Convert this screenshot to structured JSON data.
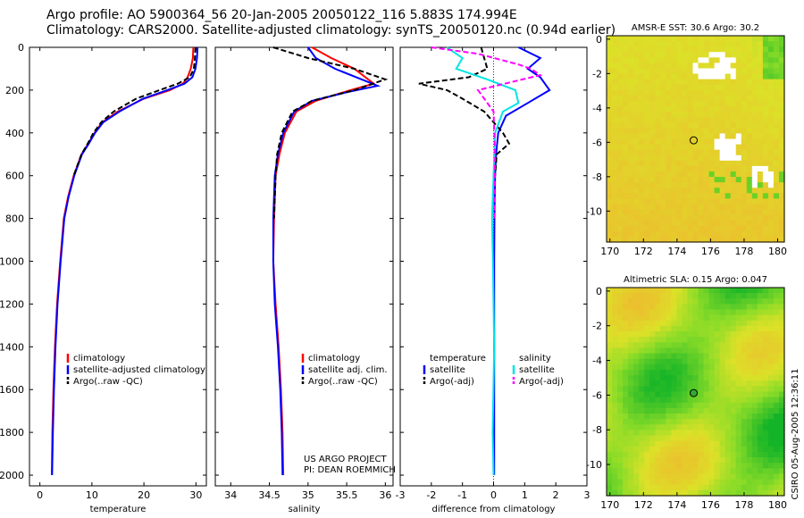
{
  "header": {
    "line1": "Argo profile: AO 5900364_56 20-Jan-2005 20050122_116 5.883S 174.994E",
    "line2": "Climatology: CARS2000. Satellite-adjusted climatology: synTS_20050120.nc (0.94d earlier)"
  },
  "colors": {
    "climatology": "#ff0000",
    "satellite": "#0000ff",
    "argo": "#000000",
    "salinity_sat": "#00e5e5",
    "salinity_argo": "#ff00ff"
  },
  "chart_data": [
    {
      "type": "line",
      "id": "temperature",
      "xlabel": "temperature",
      "ylabel": "",
      "xlim": [
        -2,
        32
      ],
      "ylim": [
        2050,
        0
      ],
      "xticks": [
        0,
        10,
        20,
        30
      ],
      "yticks": [
        0,
        200,
        400,
        600,
        800,
        1000,
        1200,
        1400,
        1600,
        1800,
        2000
      ],
      "legend": [
        "climatology",
        "satellite-adjusted climatology",
        "Argo(..raw -QC)"
      ],
      "series": [
        {
          "name": "climatology",
          "color": "#ff0000",
          "dash": false,
          "x": [
            29.5,
            29.4,
            29.0,
            28.4,
            27.5,
            25.0,
            20.0,
            15.0,
            12.0,
            10.5,
            9.3,
            8.0,
            6.5,
            5.4,
            4.6,
            3.9,
            3.3,
            2.9,
            2.6,
            2.4,
            2.3
          ],
          "y": [
            0,
            50,
            100,
            140,
            170,
            200,
            240,
            300,
            350,
            400,
            450,
            500,
            600,
            700,
            800,
            1000,
            1200,
            1400,
            1600,
            1800,
            2000
          ]
        },
        {
          "name": "satellite-adjusted climatology",
          "color": "#0000ff",
          "dash": false,
          "x": [
            30.3,
            30.2,
            29.9,
            29.3,
            27.8,
            24.5,
            19.8,
            15.3,
            12.2,
            10.6,
            9.4,
            8.1,
            6.6,
            5.5,
            4.7,
            4.0,
            3.4,
            3.0,
            2.7,
            2.5,
            2.35
          ],
          "y": [
            0,
            50,
            100,
            140,
            170,
            200,
            240,
            300,
            350,
            400,
            450,
            500,
            600,
            700,
            800,
            1000,
            1200,
            1400,
            1600,
            1800,
            2000
          ]
        },
        {
          "name": "Argo(..raw -QC)",
          "color": "#000000",
          "dash": true,
          "x": [
            29.9,
            29.8,
            29.6,
            28.8,
            26.5,
            23.0,
            18.5,
            14.2,
            11.8,
            10.3,
            9.2,
            8.0,
            6.5
          ],
          "y": [
            0,
            50,
            100,
            140,
            170,
            200,
            240,
            300,
            350,
            400,
            450,
            500,
            600
          ]
        }
      ]
    },
    {
      "type": "line",
      "id": "salinity",
      "xlabel": "salinity",
      "xlim": [
        33.8,
        36.1
      ],
      "ylim": [
        2050,
        0
      ],
      "xticks": [
        34,
        34.5,
        35,
        35.5,
        36
      ],
      "legend": [
        "climatology",
        "satellite adj. clim.",
        "Argo(..raw -QC)"
      ],
      "annotation": [
        "US ARGO PROJECT",
        "PI: DEAN ROEMMICH"
      ],
      "series": [
        {
          "name": "climatology",
          "color": "#ff0000",
          "dash": false,
          "x": [
            35.05,
            35.3,
            35.6,
            35.85,
            35.55,
            35.1,
            34.85,
            34.7,
            34.63,
            34.58,
            34.56,
            34.55,
            34.58,
            34.62,
            34.65,
            34.67,
            34.68
          ],
          "y": [
            0,
            50,
            100,
            170,
            200,
            250,
            300,
            400,
            500,
            600,
            800,
            1000,
            1200,
            1400,
            1600,
            1800,
            2000
          ]
        },
        {
          "name": "satellite adj. clim.",
          "color": "#0000ff",
          "dash": false,
          "x": [
            35.0,
            35.1,
            35.35,
            35.9,
            35.5,
            35.05,
            34.82,
            34.68,
            34.61,
            34.57,
            34.55,
            34.55,
            34.57,
            34.61,
            34.64,
            34.66,
            34.67
          ],
          "y": [
            0,
            50,
            100,
            180,
            210,
            250,
            300,
            400,
            500,
            600,
            800,
            1000,
            1200,
            1400,
            1600,
            1800,
            2000
          ]
        },
        {
          "name": "Argo(..raw -QC)",
          "color": "#000000",
          "dash": true,
          "x": [
            34.55,
            35.0,
            35.6,
            36.0,
            35.6,
            35.05,
            34.8,
            34.66,
            34.6,
            34.58,
            34.56
          ],
          "y": [
            0,
            50,
            100,
            150,
            200,
            250,
            300,
            400,
            500,
            600,
            800
          ]
        }
      ]
    },
    {
      "type": "line",
      "id": "difference",
      "xlabel": "difference from climatology",
      "xlim": [
        -3,
        3
      ],
      "ylim": [
        2050,
        0
      ],
      "xticks": [
        -3,
        -2,
        -1,
        0,
        1,
        2,
        3
      ],
      "legend_left": {
        "header": "temperature",
        "items": [
          "satellite",
          "Argo(-adj)"
        ]
      },
      "legend_right": {
        "header": "salinity",
        "items": [
          "satellite",
          "Argo(-adj)"
        ]
      },
      "series": [
        {
          "name": "temperature satellite",
          "color": "#0000ff",
          "dash": false,
          "x": [
            0.8,
            1.5,
            1.1,
            1.5,
            1.8,
            1.1,
            0.4,
            0.15,
            0.08,
            0.05,
            0.03,
            0.02,
            0.02,
            0.02,
            0.02
          ],
          "y": [
            0,
            50,
            100,
            140,
            200,
            260,
            320,
            400,
            500,
            600,
            800,
            1000,
            1400,
            1800,
            2000
          ]
        },
        {
          "name": "temperature Argo(-adj)",
          "color": "#000000",
          "dash": true,
          "x": [
            -0.4,
            -0.3,
            -0.2,
            -0.8,
            -2.4,
            -1.5,
            -1.0,
            -0.3,
            0.3,
            0.5,
            0.1,
            0.05
          ],
          "y": [
            0,
            50,
            100,
            140,
            170,
            200,
            240,
            300,
            400,
            450,
            500,
            600
          ]
        },
        {
          "name": "salinity satellite",
          "color": "#00e5e5",
          "dash": false,
          "x": [
            -1.5,
            -1.0,
            -1.2,
            -0.2,
            0.7,
            0.8,
            0.3,
            0.05,
            0.0,
            -0.05,
            -0.02,
            0.02,
            -0.03,
            0.0
          ],
          "y": [
            0,
            50,
            100,
            150,
            200,
            260,
            300,
            400,
            600,
            800,
            1000,
            1400,
            1800,
            2000
          ]
        },
        {
          "name": "salinity Argo(-adj)",
          "color": "#ff00ff",
          "dash": true,
          "x": [
            -2.0,
            -0.5,
            0.8,
            1.2,
            1.5,
            -0.5,
            0.0,
            0.05,
            0.02
          ],
          "y": [
            0,
            30,
            80,
            100,
            130,
            200,
            300,
            500,
            800
          ]
        }
      ]
    }
  ],
  "maps": [
    {
      "id": "sst",
      "title": "AMSR-E SST: 30.6 Argo: 30.2",
      "xticks": [
        170,
        172,
        174,
        176,
        178,
        180
      ],
      "yticks": [
        0,
        -2,
        -4,
        -6,
        -8,
        -10
      ],
      "xlim": [
        169.8,
        180.4
      ],
      "ylim": [
        -11.8,
        0.2
      ],
      "argo_lon": 174.994,
      "argo_lat": -5.883
    },
    {
      "id": "sla",
      "title": "Altimetric SLA: 0.15 Argo: 0.047",
      "xticks": [
        170,
        172,
        174,
        176,
        178,
        180
      ],
      "yticks": [
        0,
        -2,
        -4,
        -6,
        -8,
        -10
      ],
      "xlim": [
        169.8,
        180.4
      ],
      "ylim": [
        -11.8,
        0.2
      ],
      "argo_lon": 174.994,
      "argo_lat": -5.883
    }
  ],
  "footer": {
    "stamp": "CSIRO 05-Aug-2005 12:36:11"
  }
}
